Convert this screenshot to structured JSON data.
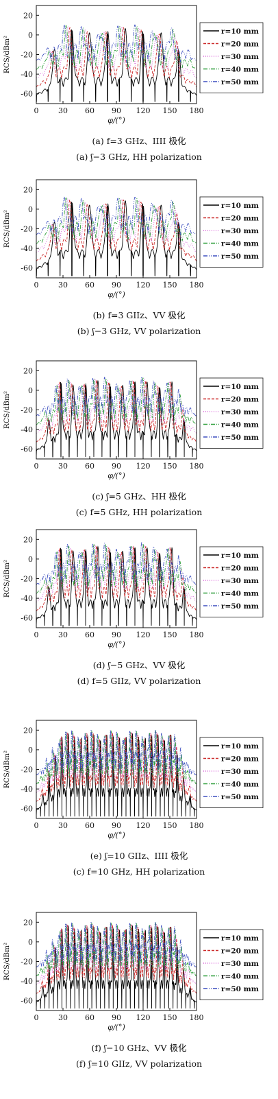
{
  "chart_data": [
    {
      "type": "line",
      "panel": "a",
      "caption_cn": "(a) f=3 GHz、IIII 极化",
      "caption_en": "(a) ʃ−3 GHz, HH polarization",
      "xlabel": "φ/(°)",
      "ylabel": "RCS/dBm²",
      "xlim": [
        0,
        180
      ],
      "ylim": [
        -70,
        30
      ],
      "xticks": [
        "0",
        "30",
        "60",
        "90",
        "120",
        "150",
        "180"
      ],
      "yticks": [
        "20",
        "0",
        "-20",
        "-40",
        "-60"
      ],
      "legend_position": "right",
      "lobes": 9,
      "peak_level": 3,
      "series": [
        {
          "name": "r=10 mm",
          "floor": -48,
          "color": "#000000",
          "dash": ""
        },
        {
          "name": "r=20 mm",
          "floor": -38,
          "color": "#cc2a2a",
          "dash": "4,2"
        },
        {
          "name": "r=30 mm",
          "floor": -28,
          "color": "#d860d8",
          "dash": "1,2"
        },
        {
          "name": "r=40 mm",
          "floor": -24,
          "color": "#2e9e3a",
          "dash": "6,2,1,2"
        },
        {
          "name": "r=50 mm",
          "floor": -18,
          "color": "#3d4fbf",
          "dash": "6,2,1,2,1,2"
        }
      ]
    },
    {
      "type": "line",
      "panel": "b",
      "caption_cn": "(b) f=3 GIIz、VV 极化",
      "caption_en": "(b) ʃ−3 GHz, VV polarization",
      "xlabel": "φ/(°)",
      "ylabel": "RCS/dBm²",
      "xlim": [
        0,
        180
      ],
      "ylim": [
        -70,
        30
      ],
      "xticks": [
        "0",
        "30",
        "60",
        "90",
        "120",
        "150",
        "180"
      ],
      "yticks": [
        "20",
        "0",
        "-20",
        "-40",
        "-60"
      ],
      "legend_position": "right",
      "lobes": 9,
      "peak_level": 5,
      "series": [
        {
          "name": "r=10 mm",
          "floor": -46,
          "color": "#000000",
          "dash": ""
        },
        {
          "name": "r=20 mm",
          "floor": -36,
          "color": "#cc2a2a",
          "dash": "4,2"
        },
        {
          "name": "r=30 mm",
          "floor": -26,
          "color": "#d860d8",
          "dash": "1,2"
        },
        {
          "name": "r=40 mm",
          "floor": -22,
          "color": "#2e9e3a",
          "dash": "6,2,1,2"
        },
        {
          "name": "r=50 mm",
          "floor": -16,
          "color": "#3d4fbf",
          "dash": "6,2,1,2,1,2"
        }
      ]
    },
    {
      "type": "line",
      "panel": "c",
      "caption_cn": "(c) ʃ=5 GHz、HH 极化",
      "caption_en": "(c) f=5 GHz, HH polarization",
      "xlabel": "φ/(°)",
      "ylabel": "RCS/dBm²",
      "xlim": [
        0,
        180
      ],
      "ylim": [
        -70,
        30
      ],
      "xticks": [
        "0",
        "30",
        "60",
        "90",
        "120",
        "150",
        "180"
      ],
      "yticks": [
        "20",
        "0",
        "-20",
        "-40",
        "-60"
      ],
      "legend_position": "right",
      "lobes": 13,
      "peak_level": 6,
      "series": [
        {
          "name": "r=10 mm",
          "floor": -46,
          "color": "#000000",
          "dash": ""
        },
        {
          "name": "r=20 mm",
          "floor": -36,
          "color": "#cc2a2a",
          "dash": "4,2"
        },
        {
          "name": "r=30 mm",
          "floor": -26,
          "color": "#d860d8",
          "dash": "1,2"
        },
        {
          "name": "r=40 mm",
          "floor": -22,
          "color": "#2e9e3a",
          "dash": "6,2,1,2"
        },
        {
          "name": "r=50 mm",
          "floor": -16,
          "color": "#3d4fbf",
          "dash": "6,2,1,2,1,2"
        }
      ]
    },
    {
      "type": "line",
      "panel": "d",
      "caption_cn": "(d) ʃ−5 GHz、VV 极化",
      "caption_en": "(d) f=5 GIIz, VV polarization",
      "xlabel": "φ/(°)",
      "ylabel": "RCS/dBm²",
      "xlim": [
        0,
        180
      ],
      "ylim": [
        -70,
        30
      ],
      "xticks": [
        "0",
        "30",
        "60",
        "90",
        "120",
        "150",
        "180"
      ],
      "yticks": [
        "20",
        "0",
        "-20",
        "-40",
        "-60"
      ],
      "legend_position": "right",
      "lobes": 13,
      "peak_level": 9,
      "series": [
        {
          "name": "r=10 mm",
          "floor": -46,
          "color": "#000000",
          "dash": ""
        },
        {
          "name": "r=20 mm",
          "floor": -34,
          "color": "#cc2a2a",
          "dash": "4,2"
        },
        {
          "name": "r=30 mm",
          "floor": -24,
          "color": "#d860d8",
          "dash": "1,2"
        },
        {
          "name": "r=40 mm",
          "floor": -20,
          "color": "#2e9e3a",
          "dash": "6,2,1,2"
        },
        {
          "name": "r=50 mm",
          "floor": -14,
          "color": "#3d4fbf",
          "dash": "6,2,1,2,1,2"
        }
      ]
    },
    {
      "type": "line",
      "panel": "e",
      "caption_cn": "(e) ʃ=10 GIIz、IIII 极化",
      "caption_en": "(c) f=10 GHz, HH polarization",
      "xlabel": "φ/(°)",
      "ylabel": "RCS/dBm²",
      "xlim": [
        0,
        180
      ],
      "ylim": [
        -70,
        30
      ],
      "xticks": [
        "0",
        "30",
        "60",
        "90",
        "120",
        "150",
        "180"
      ],
      "yticks": [
        "20",
        "0",
        "-20",
        "-40",
        "-60"
      ],
      "legend_position": "right",
      "lobes": 25,
      "peak_level": 13,
      "series": [
        {
          "name": "r=10 mm",
          "floor": -44,
          "color": "#000000",
          "dash": ""
        },
        {
          "name": "r=20 mm",
          "floor": -32,
          "color": "#cc2a2a",
          "dash": "4,2"
        },
        {
          "name": "r=30 mm",
          "floor": -22,
          "color": "#d860d8",
          "dash": "1,2"
        },
        {
          "name": "r=40 mm",
          "floor": -18,
          "color": "#2e9e3a",
          "dash": "6,2,1,2"
        },
        {
          "name": "r=50 mm",
          "floor": -12,
          "color": "#3d4fbf",
          "dash": "6,2,1,2,1,2"
        }
      ]
    },
    {
      "type": "line",
      "panel": "f",
      "caption_cn": "(f) ʃ−10 GHz、VV 极化",
      "caption_en": "(f) ʃ=10 GIIz, VV polarization",
      "xlabel": "φ/(°)",
      "ylabel": "RCS/dBm²",
      "xlim": [
        0,
        180
      ],
      "ylim": [
        -70,
        30
      ],
      "xticks": [
        "0",
        "30",
        "60",
        "90",
        "120",
        "150",
        "180"
      ],
      "yticks": [
        "20",
        "0",
        "-20",
        "-40",
        "-60"
      ],
      "legend_position": "right",
      "lobes": 25,
      "peak_level": 13,
      "series": [
        {
          "name": "r=10 mm",
          "floor": -44,
          "color": "#000000",
          "dash": ""
        },
        {
          "name": "r=20 mm",
          "floor": -32,
          "color": "#cc2a2a",
          "dash": "4,2"
        },
        {
          "name": "r=30 mm",
          "floor": -22,
          "color": "#d860d8",
          "dash": "1,2"
        },
        {
          "name": "r=40 mm",
          "floor": -18,
          "color": "#2e9e3a",
          "dash": "6,2,1,2"
        },
        {
          "name": "r=50 mm",
          "floor": -12,
          "color": "#3d4fbf",
          "dash": "6,2,1,2,1,2"
        }
      ]
    }
  ]
}
